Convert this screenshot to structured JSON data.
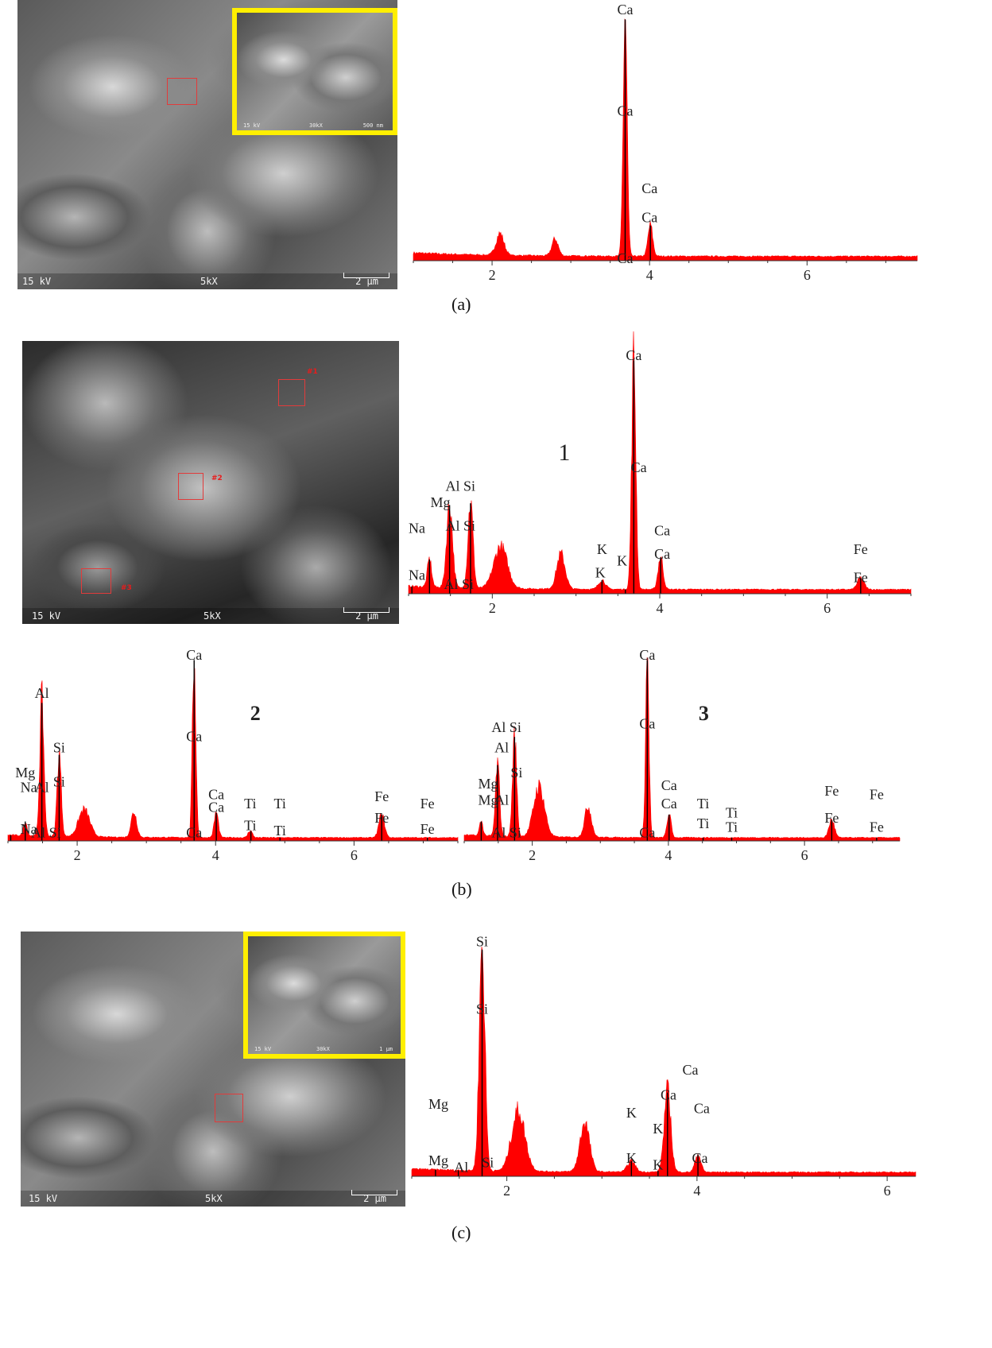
{
  "colors": {
    "spectrum": "#ff0000",
    "inset_border": "#ffef00",
    "roi": "#e23b3b"
  },
  "panels": {
    "a": {
      "caption": "(a)",
      "sem": {
        "kv": "15 kV",
        "mag": "5kX",
        "scale": "2 μm"
      },
      "inset": {
        "kv": "15 kV",
        "mag": "30kX",
        "scale": "500 nm"
      }
    },
    "b": {
      "caption": "(b)",
      "sem": {
        "kv": "15 kV",
        "mag": "5kX",
        "scale": "2 μm",
        "roi_tags": [
          "#1",
          "#2",
          "#3"
        ]
      }
    },
    "c": {
      "caption": "(c)",
      "sem": {
        "kv": "15 kV",
        "mag": "5kX",
        "scale": "2 μm"
      },
      "inset": {
        "kv": "15 kV",
        "mag": "30kX",
        "scale": "1 μm"
      }
    }
  },
  "chart_data": [
    {
      "id": "a",
      "type": "area",
      "xlim": [
        1.0,
        7.4
      ],
      "xticks": [
        2,
        4,
        6
      ],
      "xlabel": "",
      "ylabel": "",
      "grid": false,
      "peaks": [
        [
          2.1,
          0.09,
          0.05
        ],
        [
          2.8,
          0.07,
          0.04
        ],
        [
          3.69,
          1.0,
          0.025
        ],
        [
          4.01,
          0.13,
          0.03
        ]
      ],
      "lines": [
        3.69,
        4.01
      ],
      "labels": [
        {
          "text": "Ca",
          "x": 3.69,
          "y": 1.02
        },
        {
          "text": "Ca",
          "x": 3.69,
          "y": 0.6
        },
        {
          "text": "Ca",
          "x": 4.0,
          "y": 0.28
        },
        {
          "text": "Ca",
          "x": 4.0,
          "y": 0.16
        },
        {
          "text": "Ca",
          "x": 3.69,
          "y": -0.01
        }
      ]
    },
    {
      "id": "b1",
      "type": "area",
      "xlim": [
        1.0,
        7.0
      ],
      "xticks": [
        2,
        4,
        6
      ],
      "xlabel": "",
      "ylabel": "",
      "grid": false,
      "spectrum_number": "1",
      "peaks": [
        [
          1.25,
          0.12,
          0.025
        ],
        [
          1.49,
          0.36,
          0.035
        ],
        [
          1.74,
          0.37,
          0.03
        ],
        [
          2.1,
          0.18,
          0.08
        ],
        [
          2.82,
          0.15,
          0.05
        ],
        [
          3.31,
          0.04,
          0.04
        ],
        [
          3.69,
          1.0,
          0.025
        ],
        [
          4.01,
          0.14,
          0.03
        ],
        [
          6.4,
          0.05,
          0.04
        ]
      ],
      "lines": [
        1.04,
        1.25,
        1.49,
        1.74,
        3.31,
        3.59,
        3.69,
        4.01,
        6.4
      ],
      "labels": [
        {
          "text": "Ca",
          "x": 3.69,
          "y": 1.0
        },
        {
          "text": "Ca",
          "x": 3.75,
          "y": 0.52
        },
        {
          "text": "Al Si",
          "x": 1.62,
          "y": 0.44
        },
        {
          "text": "Mg",
          "x": 1.38,
          "y": 0.37
        },
        {
          "text": "Na",
          "x": 1.1,
          "y": 0.26
        },
        {
          "text": "Al Si",
          "x": 1.62,
          "y": 0.27
        },
        {
          "text": "K",
          "x": 3.31,
          "y": 0.17
        },
        {
          "text": "K",
          "x": 3.55,
          "y": 0.12
        },
        {
          "text": "Ca",
          "x": 4.03,
          "y": 0.25
        },
        {
          "text": "Ca",
          "x": 4.03,
          "y": 0.15
        },
        {
          "text": "Fe",
          "x": 6.4,
          "y": 0.17
        },
        {
          "text": "Fe",
          "x": 6.4,
          "y": 0.05
        },
        {
          "text": "Na",
          "x": 1.1,
          "y": 0.06
        },
        {
          "text": "K",
          "x": 3.29,
          "y": 0.07
        },
        {
          "text": "Al Si",
          "x": 1.6,
          "y": 0.02
        }
      ]
    },
    {
      "id": "b2",
      "type": "area",
      "xlim": [
        1.0,
        7.5
      ],
      "xticks": [
        2,
        4,
        6
      ],
      "xlabel": "",
      "ylabel": "",
      "grid": false,
      "spectrum_number": "2",
      "peaks": [
        [
          1.25,
          0.08,
          0.025
        ],
        [
          1.49,
          0.75,
          0.03
        ],
        [
          1.74,
          0.46,
          0.03
        ],
        [
          2.1,
          0.15,
          0.08
        ],
        [
          2.82,
          0.14,
          0.04
        ],
        [
          3.69,
          1.0,
          0.025
        ],
        [
          4.01,
          0.14,
          0.03
        ],
        [
          4.5,
          0.04,
          0.03
        ],
        [
          6.4,
          0.13,
          0.04
        ]
      ],
      "lines": [
        1.04,
        1.25,
        1.49,
        1.74,
        3.69,
        4.01,
        4.51,
        4.93,
        6.4,
        7.06
      ],
      "labels": [
        {
          "text": "Ca",
          "x": 3.69,
          "y": 1.0
        },
        {
          "text": "Al",
          "x": 1.49,
          "y": 0.79
        },
        {
          "text": "Si",
          "x": 1.74,
          "y": 0.49
        },
        {
          "text": "Ca",
          "x": 3.69,
          "y": 0.55
        },
        {
          "text": "Mg",
          "x": 1.25,
          "y": 0.35
        },
        {
          "text": "Na",
          "x": 1.3,
          "y": 0.27
        },
        {
          "text": "Al",
          "x": 1.49,
          "y": 0.27
        },
        {
          "text": "Si",
          "x": 1.74,
          "y": 0.3
        },
        {
          "text": "Ca",
          "x": 4.01,
          "y": 0.23
        },
        {
          "text": "Ca",
          "x": 4.01,
          "y": 0.16
        },
        {
          "text": "Ti",
          "x": 4.5,
          "y": 0.18
        },
        {
          "text": "Ti",
          "x": 4.93,
          "y": 0.18
        },
        {
          "text": "Fe",
          "x": 6.4,
          "y": 0.22
        },
        {
          "text": "Fe",
          "x": 7.06,
          "y": 0.18
        },
        {
          "text": "Fe",
          "x": 6.4,
          "y": 0.1
        },
        {
          "text": "Ti",
          "x": 4.5,
          "y": 0.06
        },
        {
          "text": "Ti",
          "x": 4.93,
          "y": 0.03
        },
        {
          "text": "Fe",
          "x": 7.06,
          "y": 0.04
        },
        {
          "text": "Na",
          "x": 1.3,
          "y": 0.04
        },
        {
          "text": "Al Si",
          "x": 1.55,
          "y": 0.02
        },
        {
          "text": "Ca",
          "x": 3.69,
          "y": 0.02
        }
      ]
    },
    {
      "id": "b3",
      "type": "area",
      "xlim": [
        1.0,
        7.4
      ],
      "xticks": [
        2,
        4,
        6
      ],
      "xlabel": "",
      "ylabel": "",
      "grid": false,
      "spectrum_number": "3",
      "peaks": [
        [
          1.25,
          0.08,
          0.025
        ],
        [
          1.49,
          0.4,
          0.03
        ],
        [
          1.74,
          0.56,
          0.03
        ],
        [
          2.1,
          0.28,
          0.08
        ],
        [
          2.82,
          0.17,
          0.05
        ],
        [
          3.69,
          1.0,
          0.025
        ],
        [
          4.01,
          0.13,
          0.03
        ],
        [
          6.4,
          0.1,
          0.04
        ]
      ],
      "lines": [
        1.25,
        1.49,
        1.74,
        3.69,
        4.01,
        4.51,
        4.93,
        6.4,
        7.06
      ],
      "labels": [
        {
          "text": "Ca",
          "x": 3.69,
          "y": 1.0
        },
        {
          "text": "Al Si",
          "x": 1.62,
          "y": 0.6
        },
        {
          "text": "Al",
          "x": 1.55,
          "y": 0.49
        },
        {
          "text": "Ca",
          "x": 3.69,
          "y": 0.62
        },
        {
          "text": "Si",
          "x": 1.77,
          "y": 0.35
        },
        {
          "text": "Mg",
          "x": 1.35,
          "y": 0.29
        },
        {
          "text": "Mg",
          "x": 1.35,
          "y": 0.2
        },
        {
          "text": "Al",
          "x": 1.55,
          "y": 0.2
        },
        {
          "text": "Ca",
          "x": 4.01,
          "y": 0.28
        },
        {
          "text": "Ca",
          "x": 4.01,
          "y": 0.18
        },
        {
          "text": "Ti",
          "x": 4.51,
          "y": 0.18
        },
        {
          "text": "Ti",
          "x": 4.93,
          "y": 0.13
        },
        {
          "text": "Ti",
          "x": 4.51,
          "y": 0.07
        },
        {
          "text": "Ti",
          "x": 4.93,
          "y": 0.05
        },
        {
          "text": "Fe",
          "x": 6.4,
          "y": 0.25
        },
        {
          "text": "Fe",
          "x": 7.06,
          "y": 0.23
        },
        {
          "text": "Fe",
          "x": 6.4,
          "y": 0.1
        },
        {
          "text": "Fe",
          "x": 7.06,
          "y": 0.05
        },
        {
          "text": "Al Si",
          "x": 1.62,
          "y": 0.02
        },
        {
          "text": "Ca",
          "x": 3.69,
          "y": 0.02
        }
      ]
    },
    {
      "id": "c",
      "type": "area",
      "xlim": [
        1.0,
        6.3
      ],
      "xticks": [
        2,
        4,
        6
      ],
      "xlabel": "",
      "ylabel": "",
      "grid": false,
      "peaks": [
        [
          1.74,
          1.0,
          0.03
        ],
        [
          2.12,
          0.27,
          0.07
        ],
        [
          2.82,
          0.22,
          0.05
        ],
        [
          3.31,
          0.05,
          0.04
        ],
        [
          3.69,
          0.36,
          0.035
        ],
        [
          4.01,
          0.08,
          0.03
        ]
      ],
      "lines": [
        1.25,
        1.49,
        1.74,
        3.31,
        3.59,
        3.69,
        4.01
      ],
      "labels": [
        {
          "text": "Si",
          "x": 1.74,
          "y": 1.02
        },
        {
          "text": "Si",
          "x": 1.74,
          "y": 0.72
        },
        {
          "text": "Ca",
          "x": 3.93,
          "y": 0.45
        },
        {
          "text": "Mg",
          "x": 1.28,
          "y": 0.3
        },
        {
          "text": "Ca",
          "x": 3.7,
          "y": 0.34
        },
        {
          "text": "Ca",
          "x": 4.05,
          "y": 0.28
        },
        {
          "text": "K",
          "x": 3.31,
          "y": 0.26
        },
        {
          "text": "K",
          "x": 3.59,
          "y": 0.19
        },
        {
          "text": "Mg",
          "x": 1.28,
          "y": 0.05
        },
        {
          "text": "Al",
          "x": 1.52,
          "y": 0.02
        },
        {
          "text": "Si",
          "x": 1.8,
          "y": 0.04
        },
        {
          "text": "K",
          "x": 3.31,
          "y": 0.06
        },
        {
          "text": "K",
          "x": 3.59,
          "y": 0.03
        },
        {
          "text": "Ca",
          "x": 4.03,
          "y": 0.06
        }
      ]
    }
  ]
}
